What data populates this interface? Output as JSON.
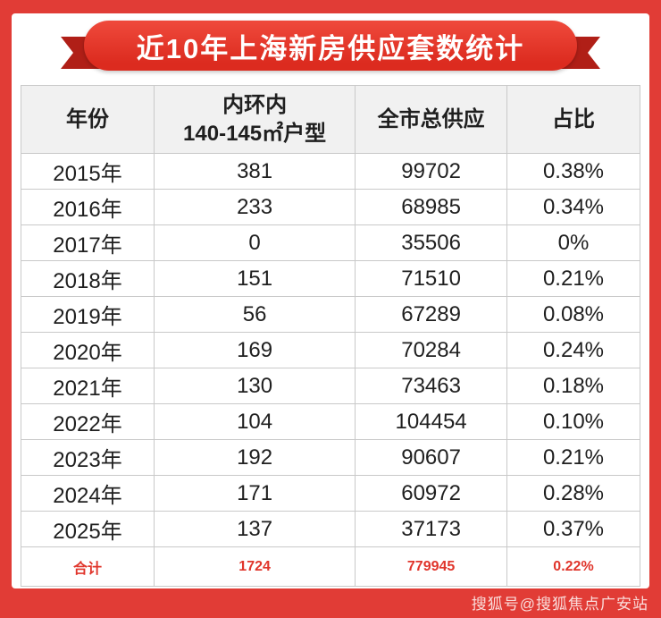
{
  "banner": {
    "title": "近10年上海新房供应套数统计"
  },
  "chart_data": {
    "type": "table",
    "title": "近10年上海新房供应套数统计",
    "columns": [
      "年份",
      "内环内\n140-145㎡户型",
      "全市总供应",
      "占比"
    ],
    "rows": [
      [
        "2015年",
        "381",
        "99702",
        "0.38%"
      ],
      [
        "2016年",
        "233",
        "68985",
        "0.34%"
      ],
      [
        "2017年",
        "0",
        "35506",
        "0%"
      ],
      [
        "2018年",
        "151",
        "71510",
        "0.21%"
      ],
      [
        "2019年",
        "56",
        "67289",
        "0.08%"
      ],
      [
        "2020年",
        "169",
        "70284",
        "0.24%"
      ],
      [
        "2021年",
        "130",
        "73463",
        "0.18%"
      ],
      [
        "2022年",
        "104",
        "104454",
        "0.10%"
      ],
      [
        "2023年",
        "192",
        "90607",
        "0.21%"
      ],
      [
        "2024年",
        "171",
        "60972",
        "0.28%"
      ],
      [
        "2025年",
        "137",
        "37173",
        "0.37%"
      ]
    ],
    "total": [
      "合计",
      "1724",
      "779945",
      "0.22%"
    ]
  },
  "watermark": {
    "text": "搜狐号@搜狐焦点广安站"
  },
  "colors": {
    "frame_red": "#e13c36",
    "banner_red": "#dc2b1f",
    "ribbon_dark": "#b01f17",
    "header_bg": "#f1f1f1",
    "border_gray": "#c9c9c9",
    "total_red": "#e0352b"
  }
}
